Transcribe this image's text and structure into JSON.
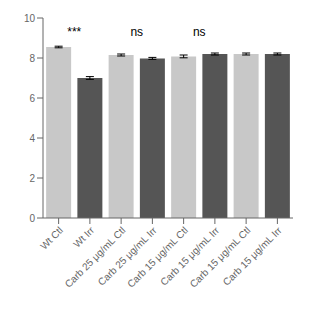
{
  "chart_data": {
    "type": "bar",
    "categories": [
      "Wt Ctl",
      "Wt Irr",
      "Carb 25 μg/mL Ctl",
      "Carb 25 μg/mL Irr",
      "Carb 15 μg/mL Ctl",
      "Carb 15 μg/mL Irr",
      "Carb 15 μg/mL Ctl",
      "Carb 15 μg/mL Irr"
    ],
    "values": [
      8.55,
      7.0,
      8.15,
      7.98,
      8.08,
      8.2,
      8.2,
      8.2
    ],
    "errors": [
      0.04,
      0.07,
      0.05,
      0.05,
      0.07,
      0.05,
      0.05,
      0.05
    ],
    "colors": [
      "#c8c8c8",
      "#555555",
      "#c8c8c8",
      "#555555",
      "#c8c8c8",
      "#555555",
      "#c8c8c8",
      "#555555"
    ],
    "ylim": [
      0,
      10
    ],
    "yticks": [
      0,
      2,
      4,
      6,
      8,
      10
    ],
    "grid": false,
    "annotations": [
      {
        "text": "***",
        "x1": 0,
        "x2": 1,
        "y": 9.3
      },
      {
        "text": "ns",
        "x1": 2,
        "x2": 3,
        "y": 9.3
      },
      {
        "text": "ns",
        "x1": 4,
        "x2": 5,
        "y": 9.3
      }
    ]
  }
}
